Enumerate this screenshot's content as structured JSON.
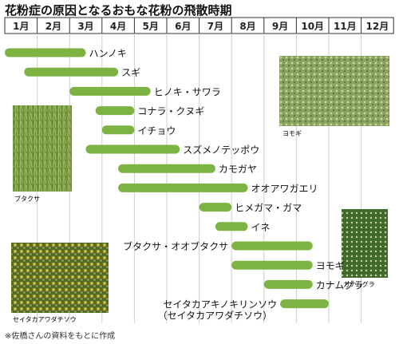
{
  "chart_data": {
    "type": "bar",
    "title": "花粉症の原因となるおもな花粉の飛散時期",
    "months": [
      "1月",
      "2月",
      "3月",
      "4月",
      "5月",
      "6月",
      "7月",
      "8月",
      "9月",
      "10月",
      "11月",
      "12月"
    ],
    "bar_color": "#7cb342",
    "series": [
      {
        "name": "ハンノキ",
        "start": 1.0,
        "end": 3.5
      },
      {
        "name": "スギ",
        "start": 1.6,
        "end": 4.5
      },
      {
        "name": "ヒノキ・サワラ",
        "start": 3.0,
        "end": 5.5
      },
      {
        "name": "コナラ・クヌギ",
        "start": 3.8,
        "end": 5.0
      },
      {
        "name": "イチョウ",
        "start": 4.0,
        "end": 5.0
      },
      {
        "name": "スズメノテッポウ",
        "start": 3.5,
        "end": 6.4
      },
      {
        "name": "カモガヤ",
        "start": 4.5,
        "end": 7.5
      },
      {
        "name": "オオアワガエリ",
        "start": 4.5,
        "end": 8.5
      },
      {
        "name": "ヒメガマ・ガマ",
        "start": 7.0,
        "end": 8.0
      },
      {
        "name": "イネ",
        "start": 7.5,
        "end": 8.5
      },
      {
        "name": "ブタクサ・オオブタクサ",
        "start": 8.0,
        "end": 10.5
      },
      {
        "name": "ヨモギ",
        "start": 8.0,
        "end": 10.5
      },
      {
        "name": "カナムグラ",
        "start": 9.0,
        "end": 10.5
      },
      {
        "name": "セイタカアキノキリンソウ",
        "subname": "（セイタカアワダチソウ）",
        "start": 9.5,
        "end": 11.0
      }
    ]
  },
  "photos": [
    {
      "id": "yomogi",
      "caption": "ヨモギ"
    },
    {
      "id": "butakusa",
      "caption": "ブタクサ"
    },
    {
      "id": "kanamugura",
      "caption": "カナムグラ"
    },
    {
      "id": "seitaka",
      "caption": "セイタカアワダチソウ"
    }
  ],
  "footnote": "※佐橋さんの資料をもとに作成"
}
